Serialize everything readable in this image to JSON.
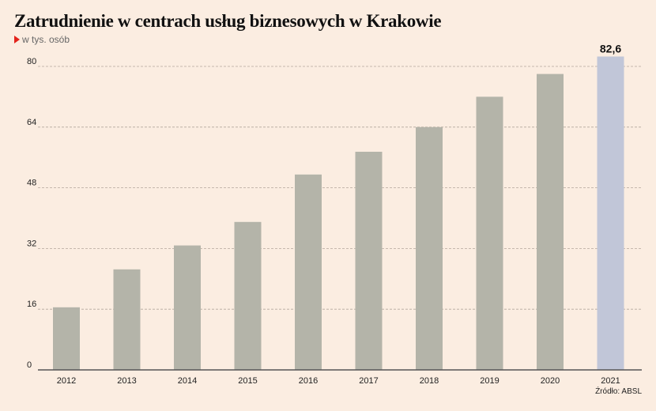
{
  "header": {
    "title": "Zatrudnienie w centrach usług biznesowych w Krakowie",
    "subtitle": "w tys. osób"
  },
  "footer": {
    "source": "Źródło: ABSL"
  },
  "colors": {
    "bar": "#b4b4a9",
    "highlight_bar": "#c1c6d8",
    "background": "#fbede1",
    "grid": "#b3a79c",
    "accent": "#e3231b"
  },
  "chart_data": {
    "type": "bar",
    "categories": [
      "2012",
      "2013",
      "2014",
      "2015",
      "2016",
      "2017",
      "2018",
      "2019",
      "2020",
      "2021"
    ],
    "values": [
      16.5,
      26.5,
      32.8,
      39.0,
      51.5,
      57.5,
      64.0,
      72.0,
      78.0,
      82.6
    ],
    "highlight_index": 9,
    "data_labels": [
      {
        "index": 9,
        "text": "82,6"
      }
    ],
    "yticks": [
      0,
      16,
      32,
      48,
      64,
      80
    ],
    "ylim": [
      0,
      80
    ],
    "grid": true,
    "xlabel": "",
    "ylabel": ""
  }
}
